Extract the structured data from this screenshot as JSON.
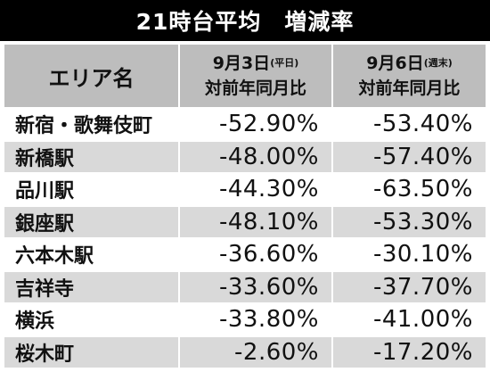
{
  "title": {
    "main": "21時台平均",
    "metric": "増減率"
  },
  "header": {
    "area": "エリア名",
    "col1_date": "9月3日",
    "col1_tag": "(平日)",
    "col1_compare": "対前年同月比",
    "col2_date": "9月6日",
    "col2_tag": "(週末)",
    "col2_compare": "対前年同月比"
  },
  "rows": [
    {
      "area": "新宿・歌舞伎町",
      "weekday": "-52.90%",
      "weekend": "-53.40%"
    },
    {
      "area": "新橋駅",
      "weekday": "-48.00%",
      "weekend": "-57.40%"
    },
    {
      "area": "品川駅",
      "weekday": "-44.30%",
      "weekend": "-63.50%"
    },
    {
      "area": "銀座駅",
      "weekday": "-48.10%",
      "weekend": "-53.30%"
    },
    {
      "area": "六本木駅",
      "weekday": "-36.60%",
      "weekend": "-30.10%"
    },
    {
      "area": "吉祥寺",
      "weekday": "-33.60%",
      "weekend": "-37.70%"
    },
    {
      "area": "横浜",
      "weekday": "-33.80%",
      "weekend": "-41.00%"
    },
    {
      "area": "桜木町",
      "weekday": "-2.60%",
      "weekend": "-17.20%"
    }
  ],
  "colors": {
    "title_bg": "#000000",
    "header_bg": "#bdbdbd",
    "stripe_bg": "#d9d9d9"
  }
}
